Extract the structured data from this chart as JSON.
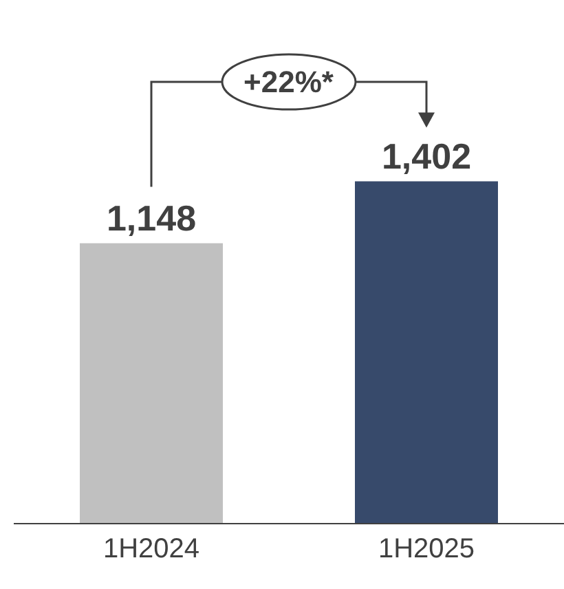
{
  "chart_data": {
    "type": "bar",
    "categories": [
      "1H2024",
      "1H2025"
    ],
    "values": [
      1148,
      1402
    ],
    "colors": [
      "#c0c0c0",
      "#374a6b"
    ],
    "value_labels": [
      "1,148",
      "1,402"
    ],
    "annotations": [
      "+22%*"
    ]
  }
}
